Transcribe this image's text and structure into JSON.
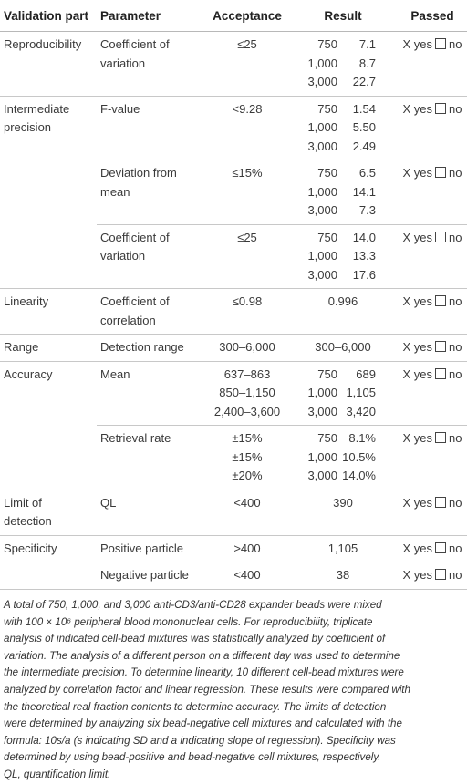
{
  "table": {
    "header": [
      "Validation part",
      "Parameter",
      "Acceptance",
      "Result",
      "Passed"
    ],
    "groups": [
      {
        "part": "Reproducibility",
        "rows": [
          {
            "parameter": "Coefficient of variation",
            "acceptance": [
              "≤25"
            ],
            "result": [
              [
                "750",
                "7.1"
              ],
              [
                "1,000",
                "8.7"
              ],
              [
                "3,000",
                "22.7"
              ]
            ],
            "passed": [
              "X yes",
              "no"
            ]
          }
        ]
      },
      {
        "part": "Intermediate precision",
        "rows": [
          {
            "parameter": "F-value",
            "acceptance": [
              "<9.28"
            ],
            "result": [
              [
                "750",
                "1.54"
              ],
              [
                "1,000",
                "5.50"
              ],
              [
                "3,000",
                "2.49"
              ]
            ],
            "passed": [
              "X yes",
              "no"
            ]
          },
          {
            "parameter": "Deviation from mean",
            "acceptance": [
              "≤15%"
            ],
            "result": [
              [
                "750",
                "6.5"
              ],
              [
                "1,000",
                "14.1"
              ],
              [
                "3,000",
                "7.3"
              ]
            ],
            "passed": [
              "X yes",
              "no"
            ]
          },
          {
            "parameter": "Coefficient of variation",
            "acceptance": [
              "≤25"
            ],
            "result": [
              [
                "750",
                "14.0"
              ],
              [
                "1,000",
                "13.3"
              ],
              [
                "3,000",
                "17.6"
              ]
            ],
            "passed": [
              "X yes",
              "no"
            ]
          }
        ]
      },
      {
        "part": "Linearity",
        "rows": [
          {
            "parameter": "Coefficient of correlation",
            "acceptance": [
              "≤0.98"
            ],
            "result": "0.996",
            "passed": [
              "X yes",
              "no"
            ]
          }
        ]
      },
      {
        "part": "Range",
        "rows": [
          {
            "parameter": "Detection range",
            "acceptance": [
              "300–6,000"
            ],
            "result": "300–6,000",
            "passed": [
              "X yes",
              "no"
            ]
          }
        ]
      },
      {
        "part": "Accuracy",
        "rows": [
          {
            "parameter": "Mean",
            "acceptance": [
              "637–863",
              "850–1,150",
              "2,400–3,600"
            ],
            "result": [
              [
                "750",
                "689"
              ],
              [
                "1,000",
                "1,105"
              ],
              [
                "3,000",
                "3,420"
              ]
            ],
            "passed": [
              "X yes",
              "no"
            ]
          },
          {
            "parameter": "Retrieval rate",
            "acceptance": [
              "±15%",
              "±15%",
              "±20%"
            ],
            "result": [
              [
                "750",
                "8.1%"
              ],
              [
                "1,000",
                "10.5%"
              ],
              [
                "3,000",
                "14.0%"
              ]
            ],
            "passed": [
              "X yes",
              "no"
            ]
          }
        ]
      },
      {
        "part": "Limit of detection",
        "rows": [
          {
            "parameter": "QL",
            "acceptance": [
              "<400"
            ],
            "result": "390",
            "passed": [
              "X yes",
              "no"
            ]
          }
        ]
      },
      {
        "part": "Specificity",
        "rows": [
          {
            "parameter": "Positive particle",
            "acceptance": [
              ">400"
            ],
            "result": "1,105",
            "passed": [
              "X yes",
              "no"
            ]
          },
          {
            "parameter": "Negative particle",
            "acceptance": [
              "<400"
            ],
            "result": "38",
            "passed": [
              "X yes",
              "no"
            ]
          }
        ]
      }
    ]
  },
  "footnote": {
    "lines": [
      "A total of 750, 1,000, and 3,000 anti-CD3/anti-CD28 expander beads were mixed",
      "with 100 × 10⁶ peripheral blood mononuclear cells. For reproducibility, triplicate",
      "analysis of indicated cell-bead mixtures was statistically analyzed by coefficient of",
      "variation. The analysis of a different person on a different day was used to determine",
      "the intermediate precision. To determine linearity, 10 different cell-bead mixtures were",
      "analyzed by correlation factor and linear regression. These results were compared with",
      "the theoretical real fraction contents to determine accuracy. The limits of detection",
      "were determined by analyzing six bead-negative cell mixtures and calculated with the",
      "formula: 10s/a (s indicating SD and a indicating slope of regression). Specificity was",
      "determined by using bead-positive and bead-negative cell mixtures, respectively.",
      "QL, quantification limit."
    ]
  }
}
